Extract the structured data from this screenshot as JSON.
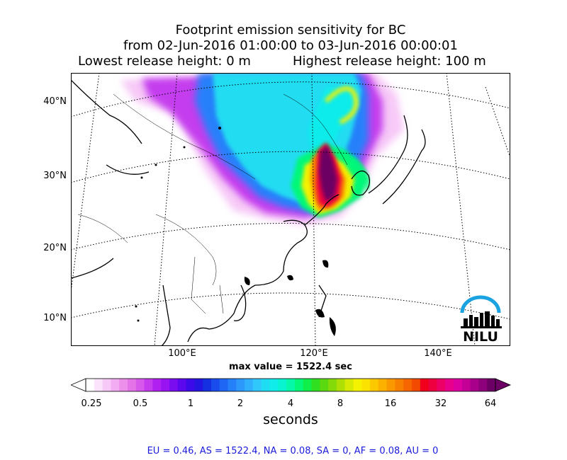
{
  "title": {
    "line1": "Footprint emission sensitivity for BC",
    "line2": "from 02-Jun-2016 01:00:00 to 03-Jun-2016 00:00:01",
    "lowest": "Lowest release height: 0 m",
    "highest": "Highest release height: 100 m"
  },
  "axes": {
    "lat_labels": [
      "40°N",
      "30°N",
      "20°N",
      "10°N"
    ],
    "lon_labels": [
      "100°E",
      "120°E",
      "140°E"
    ]
  },
  "max_value": "max value = 1522.4 sec",
  "colorbar": {
    "ticks": [
      "0.25",
      "0.5",
      "1",
      "2",
      "4",
      "8",
      "16",
      "32",
      "64"
    ],
    "units": "seconds",
    "colors": [
      "#ffffff",
      "#fbe3fb",
      "#f7c9f7",
      "#f2adf2",
      "#ec90ec",
      "#e474e8",
      "#d659ec",
      "#c43cee",
      "#b020f0",
      "#9814f2",
      "#7a0cf0",
      "#5b08ee",
      "#3c0ae8",
      "#2416e0",
      "#1430e0",
      "#1a4ced",
      "#2066f5",
      "#2680fa",
      "#2c98fc",
      "#30b0fc",
      "#30c8fa",
      "#20dcf2",
      "#10ecea",
      "#08f4d0",
      "#04f8a8",
      "#04f878",
      "#10ee48",
      "#30e020",
      "#5ad810",
      "#84da08",
      "#aee006",
      "#d6ea04",
      "#f4f200",
      "#fce200",
      "#fcc800",
      "#fcb000",
      "#fa9800",
      "#f88000",
      "#f66600",
      "#f24a00",
      "#f0001c",
      "#ee0040",
      "#ec0068",
      "#e8008c",
      "#dc00a0",
      "#c40096",
      "#a8008a",
      "#8c007c",
      "#6c0064"
    ]
  },
  "regions": "EU = 0.46,  AS = 1522.4,  NA = 0.08,  SA = 0,  AF = 0.08,  AU = 0",
  "logo": {
    "text": "NILU",
    "arc_color": "#1aa3e0"
  }
}
